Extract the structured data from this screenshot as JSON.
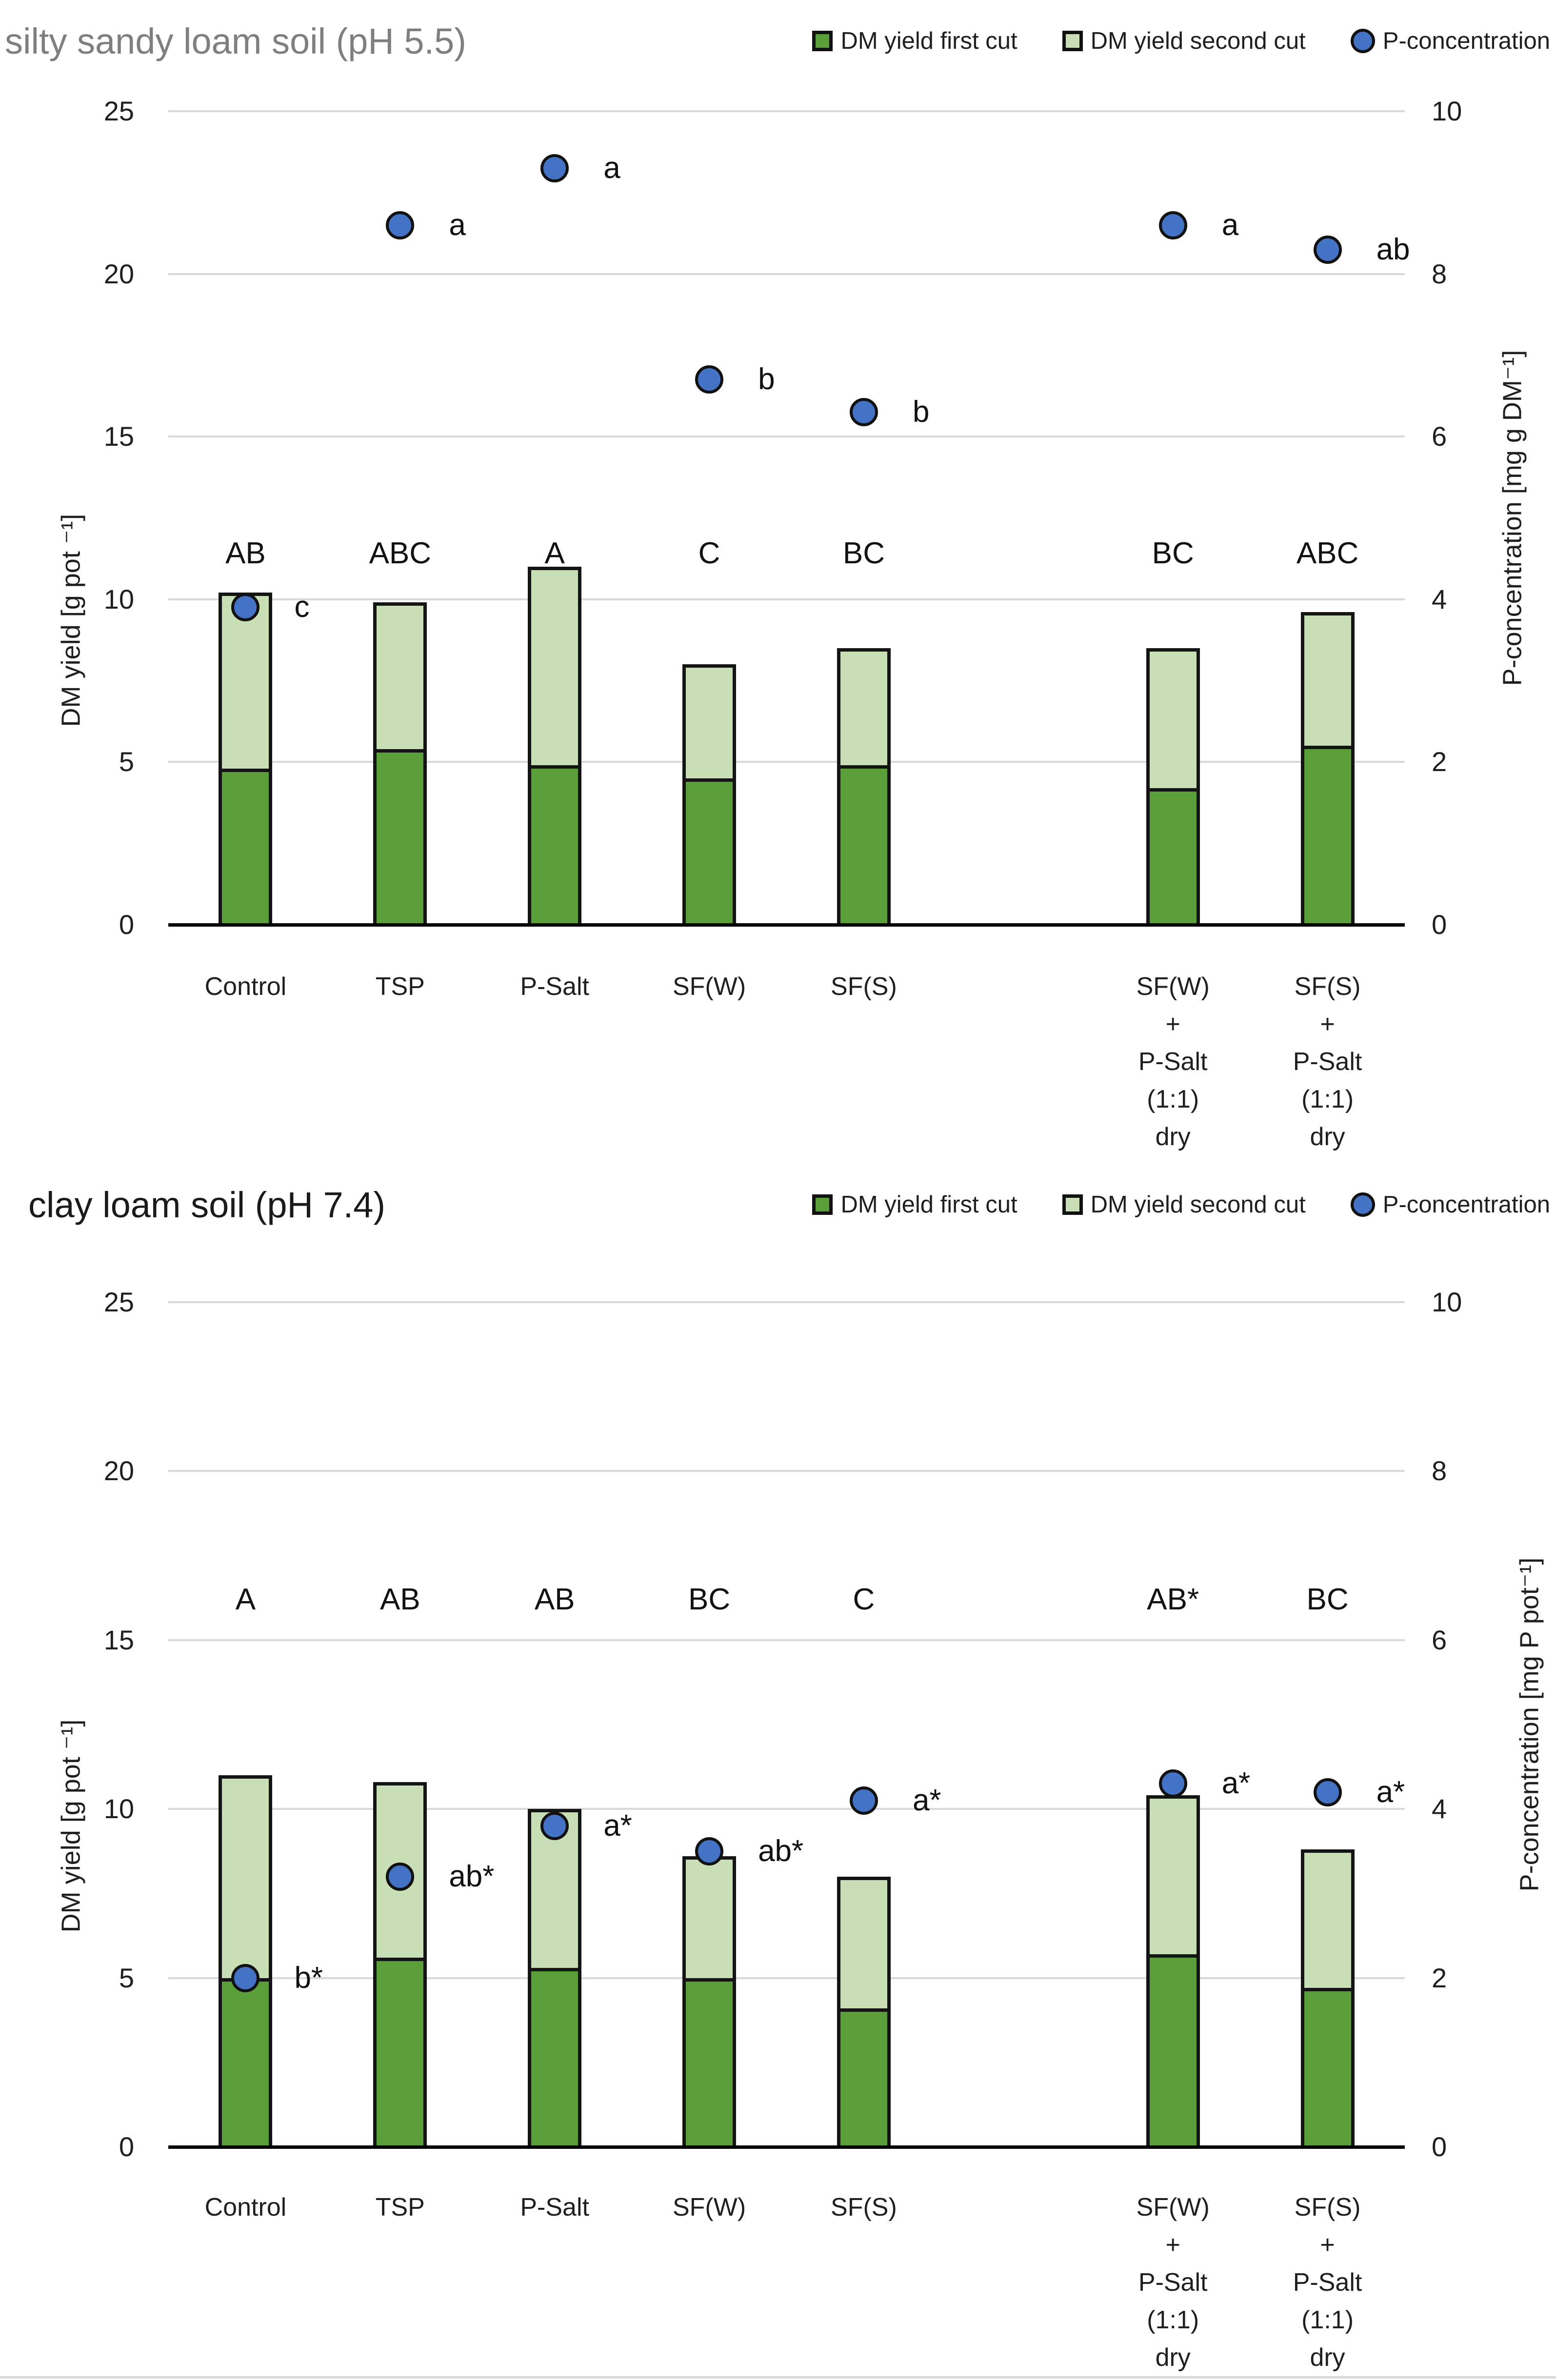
{
  "colors": {
    "first_cut": "#5a9e3a",
    "second_cut": "#c8dfb6",
    "point": "#4472c4",
    "grid": "#d9d9d9",
    "axis": "#000000"
  },
  "legend": [
    {
      "label": "DM yield first cut",
      "marker": "square"
    },
    {
      "label": "DM yield second cut",
      "marker": "square"
    },
    {
      "label": "P-concentration",
      "marker": "circle"
    }
  ],
  "chart_data": [
    {
      "type": "stacked-bar+scatter",
      "title": "silty sandy loam soil (pH 5.5)",
      "title_color": "#7f7f7f",
      "left_axis": {
        "label": "DM yield [g pot ⁻¹]",
        "min": 0,
        "max": 25,
        "ticks": [
          0,
          5,
          10,
          15,
          20,
          25
        ]
      },
      "right_axis": {
        "label": "P-concentration [mg g DM⁻¹]",
        "min": 0,
        "max": 10,
        "ticks": [
          0,
          2,
          4,
          6,
          8,
          10
        ]
      },
      "grid": true,
      "categories": [
        "Control",
        "TSP",
        "P-Salt",
        "SF(W)",
        "SF(S)",
        "",
        "SF(W)\n+\nP-Salt\n(1:1)\ndry",
        "SF(S)\n+\nP-Salt\n(1:1)\ndry"
      ],
      "letters": [
        "AB",
        "ABC",
        "A",
        "C",
        "BC",
        "",
        "BC",
        "ABC"
      ],
      "series": [
        {
          "name": "DM yield first cut",
          "values": [
            4.8,
            5.4,
            4.9,
            4.5,
            4.9,
            null,
            4.2,
            5.5
          ]
        },
        {
          "name": "DM yield second cut",
          "values": [
            5.4,
            4.5,
            6.1,
            3.5,
            3.6,
            null,
            4.3,
            4.1
          ]
        }
      ],
      "points": {
        "name": "P-concentration",
        "axis": "right",
        "values": [
          3.9,
          8.6,
          9.3,
          6.7,
          6.3,
          null,
          8.6,
          8.3
        ],
        "labels": [
          "c",
          "a",
          "a",
          "b",
          "b",
          "",
          "a",
          "ab"
        ]
      }
    },
    {
      "type": "stacked-bar+scatter",
      "title": "clay loam soil (pH 7.4)",
      "title_color": "#1a1a1a",
      "left_axis": {
        "label": "DM yield [g pot ⁻¹]",
        "min": 0,
        "max": 25,
        "ticks": [
          0,
          5,
          10,
          15,
          20,
          25
        ]
      },
      "right_axis": {
        "label": "P-concentration [mg P pot⁻¹]",
        "min": 0,
        "max": 10,
        "ticks": [
          0,
          2,
          4,
          6,
          8,
          10
        ]
      },
      "grid": true,
      "categories": [
        "Control",
        "TSP",
        "P-Salt",
        "SF(W)",
        "SF(S)",
        "",
        "SF(W)\n+\nP-Salt\n(1:1)\ndry",
        "SF(S)\n+\nP-Salt\n(1:1)\ndry"
      ],
      "letters": [
        "A",
        "AB",
        "AB",
        "BC",
        "C",
        "",
        "AB*",
        "BC"
      ],
      "series": [
        {
          "name": "DM yield first cut",
          "values": [
            5.0,
            5.6,
            5.3,
            5.0,
            4.1,
            null,
            5.7,
            4.7
          ]
        },
        {
          "name": "DM yield second cut",
          "values": [
            6.0,
            5.2,
            4.7,
            3.6,
            3.9,
            null,
            4.7,
            4.1
          ]
        }
      ],
      "points": {
        "name": "P-concentration",
        "axis": "right",
        "values": [
          2.0,
          3.2,
          3.8,
          3.5,
          4.1,
          null,
          4.3,
          4.2
        ],
        "labels": [
          "b*",
          "ab*",
          "a*",
          "ab*",
          "a*",
          "",
          "a*",
          "a*"
        ]
      }
    }
  ]
}
